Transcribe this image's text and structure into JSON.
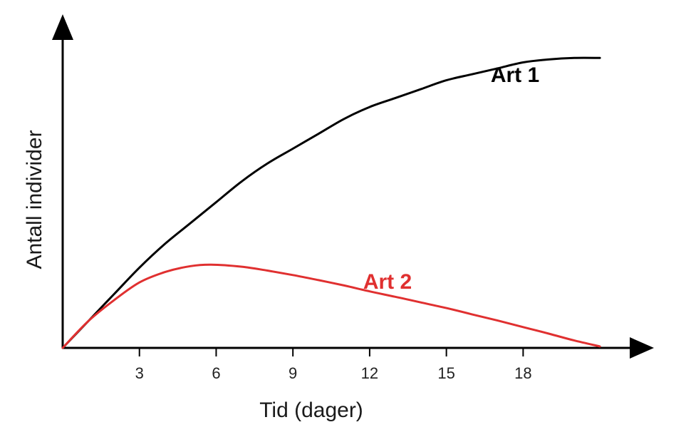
{
  "chart_data": {
    "type": "line",
    "xlabel": "Tid (dager)",
    "ylabel": "Antall individer",
    "x_ticks": [
      "3",
      "6",
      "9",
      "12",
      "15",
      "18"
    ],
    "x_tick_values": [
      3,
      6,
      9,
      12,
      15,
      18
    ],
    "xlim": [
      0,
      22
    ],
    "ylim": [
      0,
      105
    ],
    "grid": false,
    "legend": "none",
    "series": [
      {
        "name": "Art 1",
        "color": "#000000",
        "x": [
          0,
          1,
          2,
          3,
          4,
          5,
          6,
          7,
          8,
          9,
          10,
          11,
          12,
          13,
          14,
          15,
          16,
          17,
          18,
          19,
          20,
          21
        ],
        "values": [
          0,
          9,
          18,
          27,
          35,
          42,
          49,
          56,
          62,
          67,
          72,
          77,
          81,
          84,
          87,
          90,
          92,
          94,
          96,
          97,
          97.5,
          97.5
        ]
      },
      {
        "name": "Art 2",
        "color": "#e03030",
        "x": [
          0,
          1,
          2,
          3,
          4,
          5,
          5.8,
          7,
          8,
          9,
          10,
          11,
          12,
          13,
          14,
          15,
          16,
          17,
          18,
          19,
          20,
          21
        ],
        "values": [
          0,
          9,
          16,
          22,
          25.5,
          27.5,
          28,
          27.3,
          26,
          24.5,
          22.8,
          21,
          19,
          17.2,
          15.3,
          13.4,
          11.3,
          9.2,
          7,
          4.8,
          2.5,
          0.5
        ]
      }
    ]
  }
}
